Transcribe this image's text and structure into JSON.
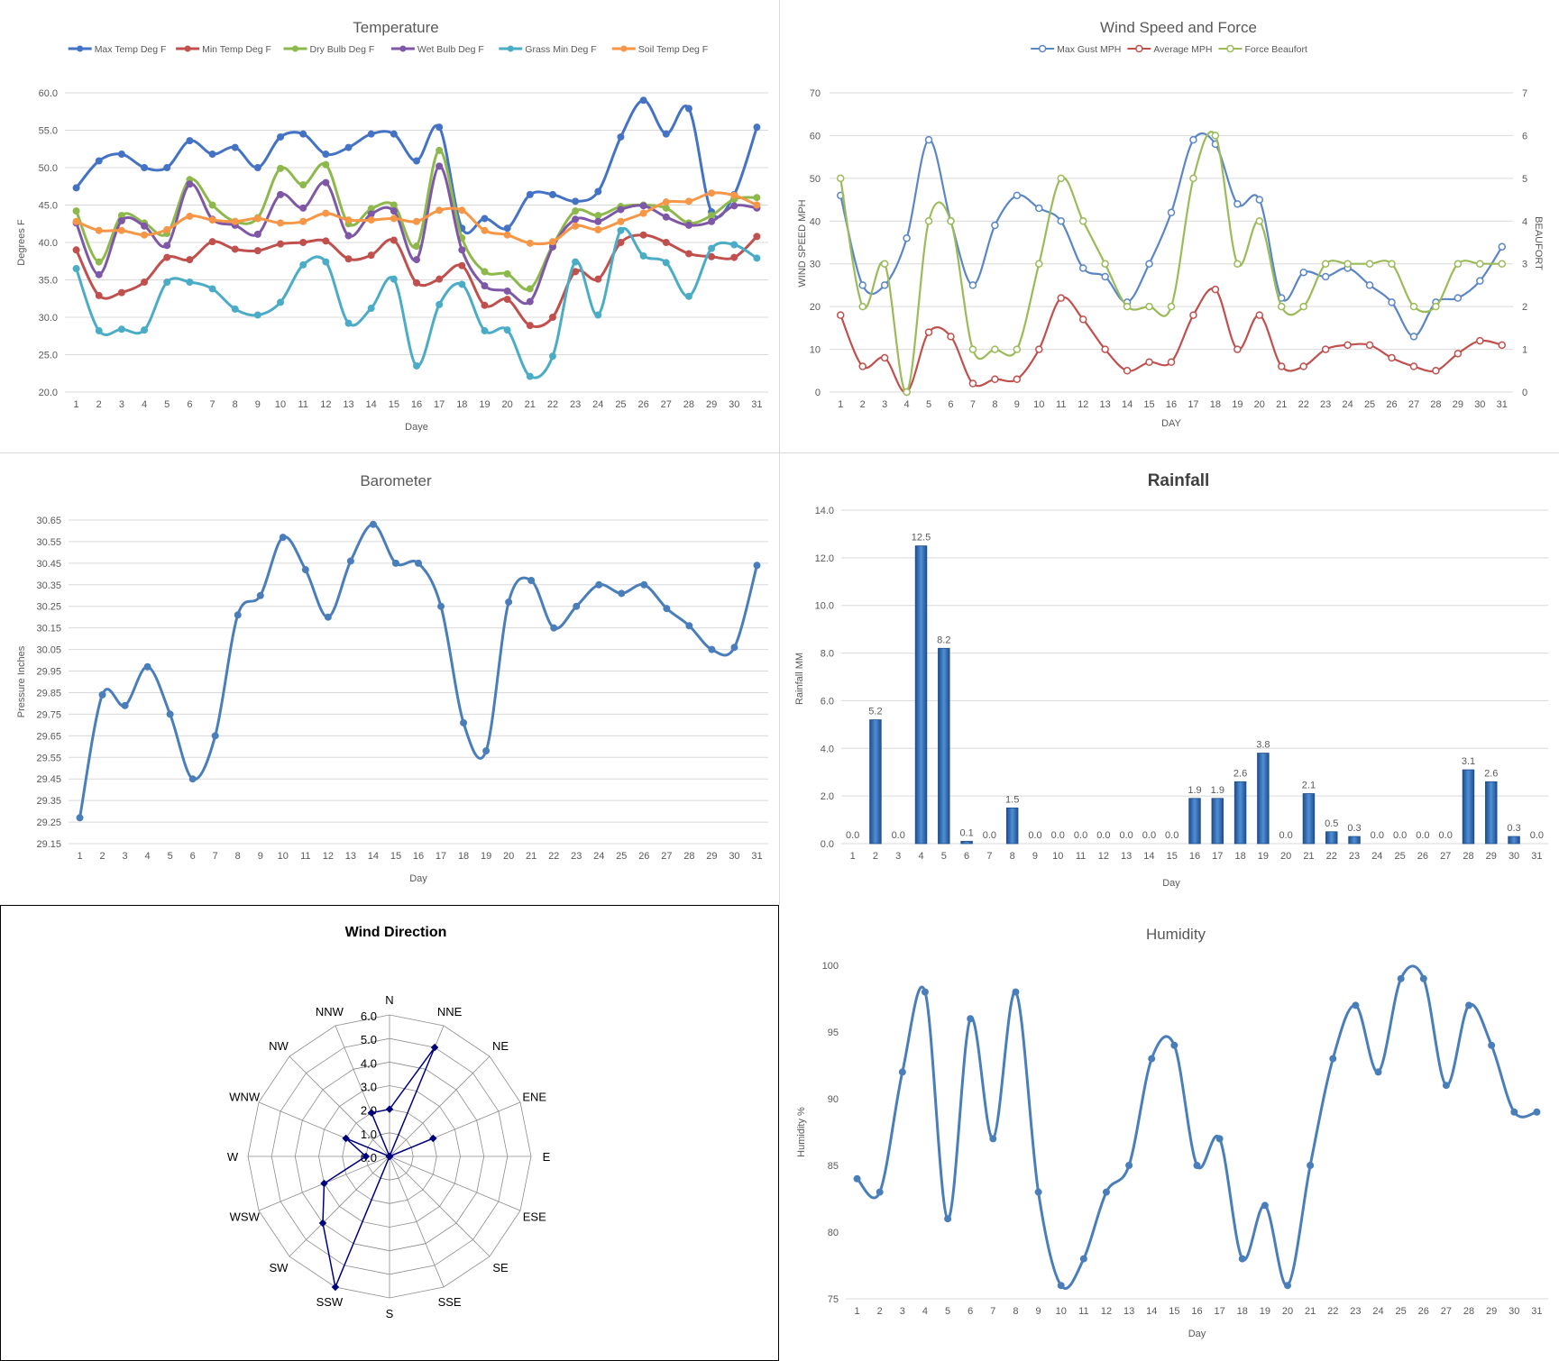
{
  "colors": {
    "max_temp": "#4472C4",
    "min_temp": "#C0504D",
    "dry_bulb": "#8DB94C",
    "wet_bulb": "#7E57A6",
    "grass_min": "#4BACC6",
    "soil_temp": "#F79646",
    "gust": "#5B86C5",
    "avg": "#C0504D",
    "beaufort": "#9BBB59",
    "baro": "#4A7EBB",
    "rain": "#2E75B6",
    "dir": "#00007F",
    "humidity": "#4A7EBB",
    "grid": "#D9D9D9",
    "text": "#595959"
  },
  "chart_data": [
    {
      "id": "temperature",
      "type": "line",
      "title": "Temperature",
      "xlabel": "Daye",
      "ylabel": "Degrees F",
      "ylim": [
        20,
        60
      ],
      "ytick_step": 5,
      "ytick_decimals": 1,
      "legend_position": "top",
      "grid": true,
      "x": [
        1,
        2,
        3,
        4,
        5,
        6,
        7,
        8,
        9,
        10,
        11,
        12,
        13,
        14,
        15,
        16,
        17,
        18,
        19,
        20,
        21,
        22,
        23,
        24,
        25,
        26,
        27,
        28,
        29,
        30,
        31
      ],
      "series": [
        {
          "name": "Max Temp Deg F",
          "color_key": "max_temp",
          "values": [
            47.3,
            50.9,
            51.8,
            50.0,
            50.0,
            53.6,
            51.8,
            52.7,
            50.0,
            54.1,
            54.5,
            51.8,
            52.7,
            54.5,
            54.5,
            50.9,
            55.4,
            41.9,
            43.2,
            41.9,
            46.4,
            46.4,
            45.5,
            46.8,
            54.1,
            59.0,
            54.5,
            57.9,
            44.1,
            46.4,
            55.4
          ]
        },
        {
          "name": "Min Temp Deg F",
          "color_key": "min_temp",
          "values": [
            39.0,
            32.9,
            33.3,
            34.7,
            38.0,
            37.7,
            40.1,
            39.1,
            38.9,
            39.8,
            40.0,
            40.2,
            37.8,
            38.3,
            40.3,
            34.6,
            35.1,
            36.9,
            31.6,
            32.4,
            28.9,
            30.0,
            36.1,
            35.1,
            40.0,
            41.0,
            40.0,
            38.5,
            38.1,
            38.0,
            40.8
          ]
        },
        {
          "name": "Dry Bulb Deg F",
          "color_key": "dry_bulb",
          "values": [
            44.2,
            37.4,
            43.6,
            42.6,
            41.2,
            48.4,
            45.0,
            42.8,
            43.3,
            49.9,
            47.7,
            50.4,
            42.5,
            44.5,
            45.0,
            39.5,
            52.3,
            40.6,
            36.1,
            35.8,
            33.8,
            39.6,
            44.2,
            43.6,
            44.8,
            45.0,
            44.6,
            42.6,
            43.6,
            45.8,
            46.0
          ]
        },
        {
          "name": "Wet Bulb Deg F",
          "color_key": "wet_bulb",
          "values": [
            42.6,
            35.7,
            42.9,
            42.2,
            39.6,
            47.8,
            43.1,
            42.3,
            41.1,
            46.4,
            44.6,
            48.0,
            40.9,
            43.8,
            44.2,
            37.7,
            50.2,
            39.0,
            34.2,
            33.5,
            32.1,
            39.4,
            43.1,
            42.8,
            44.4,
            44.9,
            43.4,
            42.3,
            42.8,
            44.9,
            44.6
          ]
        },
        {
          "name": "Grass Min Deg F",
          "color_key": "grass_min",
          "values": [
            36.5,
            28.2,
            28.4,
            28.3,
            34.7,
            34.7,
            33.8,
            31.1,
            30.3,
            32.0,
            37.0,
            37.4,
            29.2,
            31.2,
            35.1,
            23.5,
            31.7,
            34.4,
            28.2,
            28.3,
            22.1,
            24.8,
            37.4,
            30.3,
            41.6,
            38.2,
            37.3,
            32.8,
            39.2,
            39.7,
            37.9
          ]
        },
        {
          "name": "Soil Temp Deg F",
          "color_key": "soil_temp",
          "values": [
            42.8,
            41.6,
            41.6,
            41.0,
            41.7,
            43.5,
            43.0,
            42.8,
            43.2,
            42.6,
            42.8,
            43.9,
            43.0,
            43.0,
            43.2,
            42.8,
            44.3,
            44.3,
            41.6,
            41.0,
            39.9,
            40.1,
            42.2,
            41.7,
            42.8,
            43.9,
            45.4,
            45.5,
            46.6,
            46.3,
            45.0
          ]
        }
      ]
    },
    {
      "id": "wind_speed",
      "type": "line",
      "title": "Wind Speed and Force",
      "xlabel": "DAY",
      "ylabel": "WIND SPEED MPH",
      "y2label": "BEAUFORT",
      "ylim": [
        0,
        70
      ],
      "ytick_step": 10,
      "y2lim": [
        0,
        7
      ],
      "y2tick_step": 1,
      "legend_position": "top",
      "grid": true,
      "x": [
        1,
        2,
        3,
        4,
        5,
        6,
        7,
        8,
        9,
        10,
        11,
        12,
        13,
        14,
        15,
        16,
        17,
        18,
        19,
        20,
        21,
        22,
        23,
        24,
        25,
        26,
        27,
        28,
        29,
        30,
        31
      ],
      "series": [
        {
          "name": "Max Gust MPH",
          "color_key": "gust",
          "axis": "left",
          "values": [
            46,
            25,
            25,
            36,
            59,
            40,
            25,
            39,
            46,
            43,
            40,
            29,
            27,
            21,
            30,
            42,
            59,
            58,
            44,
            45,
            22,
            28,
            27,
            29,
            25,
            21,
            13,
            21,
            22,
            26,
            34
          ]
        },
        {
          "name": "Average MPH",
          "color_key": "avg",
          "axis": "left",
          "values": [
            18,
            6,
            8,
            0,
            14,
            13,
            2,
            3,
            3,
            10,
            22,
            17,
            10,
            5,
            7,
            7,
            18,
            24,
            10,
            18,
            6,
            6,
            10,
            11,
            11,
            8,
            6,
            5,
            9,
            12,
            11
          ]
        },
        {
          "name": "Force Beaufort",
          "color_key": "beaufort",
          "axis": "right",
          "values": [
            5,
            2,
            3,
            0,
            4,
            4,
            1,
            1,
            1,
            3,
            5,
            4,
            3,
            2,
            2,
            2,
            5,
            6,
            3,
            4,
            2,
            2,
            3,
            3,
            3,
            3,
            2,
            2,
            3,
            3,
            3
          ]
        }
      ]
    },
    {
      "id": "barometer",
      "type": "line",
      "title": "Barometer",
      "xlabel": "Day",
      "ylabel": "Pressure Inches",
      "ylim": [
        29.15,
        30.65
      ],
      "ytick_step": 0.1,
      "ytick_decimals": 2,
      "grid": true,
      "x": [
        1,
        2,
        3,
        4,
        5,
        6,
        7,
        8,
        9,
        10,
        11,
        12,
        13,
        14,
        15,
        16,
        17,
        18,
        19,
        20,
        21,
        22,
        23,
        24,
        25,
        26,
        27,
        28,
        29,
        30,
        31
      ],
      "series": [
        {
          "name": "Barometer",
          "color_key": "baro",
          "values": [
            29.27,
            29.84,
            29.79,
            29.97,
            29.75,
            29.45,
            29.65,
            30.21,
            30.3,
            30.57,
            30.42,
            30.2,
            30.46,
            30.63,
            30.45,
            30.45,
            30.25,
            29.71,
            29.58,
            30.27,
            30.37,
            30.15,
            30.25,
            30.35,
            30.31,
            30.35,
            30.24,
            30.16,
            30.05,
            30.06,
            30.44
          ]
        }
      ]
    },
    {
      "id": "rainfall",
      "type": "bar",
      "title": "Rainfall",
      "xlabel": "Day",
      "ylabel": "Rainfall MM",
      "ylim": [
        0,
        14
      ],
      "ytick_step": 2,
      "ytick_decimals": 1,
      "grid": true,
      "categories": [
        "1",
        "2",
        "3",
        "4",
        "5",
        "6",
        "7",
        "8",
        "9",
        "10",
        "11",
        "12",
        "13",
        "14",
        "15",
        "16",
        "17",
        "18",
        "19",
        "20",
        "21",
        "22",
        "23",
        "24",
        "25",
        "26",
        "27",
        "28",
        "29",
        "30",
        "31"
      ],
      "values": [
        0.0,
        5.2,
        0.0,
        12.5,
        8.2,
        0.1,
        0.0,
        1.5,
        0.0,
        0.0,
        0.0,
        0.0,
        0.0,
        0.0,
        0.0,
        1.9,
        1.9,
        2.6,
        3.8,
        0.0,
        2.1,
        0.5,
        0.3,
        0.0,
        0.0,
        0.0,
        0.0,
        3.1,
        2.6,
        0.3,
        0.0
      ],
      "data_labels": [
        "0.0",
        "5.2",
        "0.0",
        "12.5",
        "8.2",
        "0.1",
        "0.0",
        "1.5",
        "0.0",
        "0.0",
        "0.0",
        "0.0",
        "0.0",
        "0.0",
        "0.0",
        "1.9",
        "1.9",
        "2.6",
        "3.8",
        "0.0",
        "2.1",
        "0.5",
        "0.3",
        "0.0",
        "0.0",
        "0.0",
        "0.0",
        "3.1",
        "2.6",
        "0.3",
        "0.0"
      ]
    },
    {
      "id": "wind_direction",
      "type": "radar",
      "title": "Wind Direction",
      "rlim": [
        0,
        6
      ],
      "rtick_step": 1,
      "rtick_labels": [
        "0.0",
        "1.0",
        "2.0",
        "3.0",
        "4.0",
        "5.0",
        "6.0"
      ],
      "categories": [
        "N",
        "NNE",
        "NE",
        "ENE",
        "E",
        "ESE",
        "SE",
        "SSE",
        "S",
        "SSW",
        "SW",
        "WSW",
        "W",
        "WNW",
        "NW",
        "NNW"
      ],
      "values": [
        2,
        5,
        0,
        2,
        0,
        0,
        0,
        0,
        0,
        6,
        4,
        3,
        1,
        2,
        0,
        2
      ]
    },
    {
      "id": "humidity",
      "type": "line",
      "title": "Humidity",
      "xlabel": "Day",
      "ylabel": "Humidity %",
      "ylim": [
        75,
        100
      ],
      "ytick_step": 5,
      "ytick_decimals": 0,
      "grid": false,
      "x": [
        1,
        2,
        3,
        4,
        5,
        6,
        7,
        8,
        9,
        10,
        11,
        12,
        13,
        14,
        15,
        16,
        17,
        18,
        19,
        20,
        21,
        22,
        23,
        24,
        25,
        26,
        27,
        28,
        29,
        30,
        31
      ],
      "series": [
        {
          "name": "Humidity",
          "color_key": "humidity",
          "values": [
            84,
            83,
            92,
            98,
            81,
            96,
            87,
            98,
            83,
            76,
            78,
            83,
            85,
            93,
            94,
            85,
            87,
            78,
            82,
            76,
            85,
            93,
            97,
            92,
            99,
            99,
            91,
            97,
            94,
            89,
            89
          ]
        }
      ]
    }
  ]
}
